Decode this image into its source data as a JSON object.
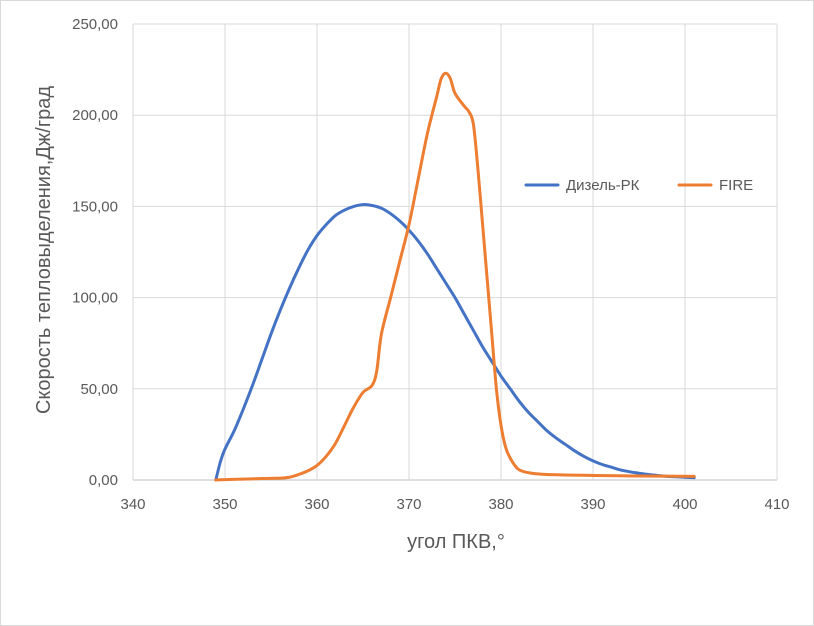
{
  "chart_data": {
    "type": "line",
    "title": "",
    "xlabel": "угол ПКВ,°",
    "ylabel": "Скорость тепловыделения,Дж/град",
    "xlim": [
      340,
      410
    ],
    "ylim": [
      0,
      250
    ],
    "x_ticks": [
      340,
      350,
      360,
      370,
      380,
      390,
      400,
      410
    ],
    "x_tick_labels": [
      "340",
      "350",
      "360",
      "370",
      "380",
      "390",
      "400",
      "410"
    ],
    "y_ticks": [
      0,
      50,
      100,
      150,
      200,
      250
    ],
    "y_tick_labels": [
      "0,00",
      "50,00",
      "100,00",
      "150,00",
      "200,00",
      "250,00"
    ],
    "grid": true,
    "legend_position": "right",
    "series": [
      {
        "name": "Дизель-РК",
        "color": "#4472C4",
        "points": [
          [
            349,
            0
          ],
          [
            349.5,
            10
          ],
          [
            350,
            17
          ],
          [
            351,
            27
          ],
          [
            352,
            39
          ],
          [
            353,
            52
          ],
          [
            354,
            66
          ],
          [
            355,
            80
          ],
          [
            356,
            93
          ],
          [
            357,
            105
          ],
          [
            358,
            116
          ],
          [
            359,
            126
          ],
          [
            360,
            134
          ],
          [
            361,
            140
          ],
          [
            362,
            145
          ],
          [
            363,
            148
          ],
          [
            364,
            150
          ],
          [
            365,
            151
          ],
          [
            366,
            150.5
          ],
          [
            367,
            149
          ],
          [
            368,
            146
          ],
          [
            369,
            142
          ],
          [
            370,
            137
          ],
          [
            371,
            131
          ],
          [
            372,
            124
          ],
          [
            373,
            116
          ],
          [
            374,
            108
          ],
          [
            375,
            100
          ],
          [
            376,
            91
          ],
          [
            377,
            82
          ],
          [
            378,
            73
          ],
          [
            379,
            65
          ],
          [
            380,
            57
          ],
          [
            381,
            50
          ],
          [
            382,
            43
          ],
          [
            383,
            37
          ],
          [
            384,
            32
          ],
          [
            385,
            27
          ],
          [
            386,
            23
          ],
          [
            387,
            19.5
          ],
          [
            388,
            16
          ],
          [
            389,
            13
          ],
          [
            390,
            10.5
          ],
          [
            391,
            8.5
          ],
          [
            392,
            7
          ],
          [
            393,
            5.5
          ],
          [
            394,
            4.5
          ],
          [
            395,
            3.7
          ],
          [
            396,
            3
          ],
          [
            397,
            2.5
          ],
          [
            398,
            2
          ],
          [
            399,
            1.8
          ],
          [
            400,
            1.5
          ],
          [
            401,
            1.3
          ]
        ]
      },
      {
        "name": "FIRE",
        "color": "#ED7D31",
        "points": [
          [
            349,
            0
          ],
          [
            350,
            0.2
          ],
          [
            352,
            0.5
          ],
          [
            354,
            0.8
          ],
          [
            356,
            1
          ],
          [
            357,
            1.5
          ],
          [
            358,
            3
          ],
          [
            359,
            5
          ],
          [
            360,
            8
          ],
          [
            361,
            13
          ],
          [
            362,
            20
          ],
          [
            363,
            30
          ],
          [
            364,
            40
          ],
          [
            365,
            48
          ],
          [
            366,
            52
          ],
          [
            366.5,
            60
          ],
          [
            367,
            80
          ],
          [
            368,
            100
          ],
          [
            369,
            120
          ],
          [
            370,
            140
          ],
          [
            371,
            165
          ],
          [
            372,
            190
          ],
          [
            373,
            210
          ],
          [
            373.5,
            220
          ],
          [
            374,
            223
          ],
          [
            374.5,
            220
          ],
          [
            375,
            212
          ],
          [
            376,
            205
          ],
          [
            376.5,
            202
          ],
          [
            377,
            195
          ],
          [
            377.5,
            170
          ],
          [
            378,
            140
          ],
          [
            378.5,
            110
          ],
          [
            379,
            80
          ],
          [
            379.5,
            50
          ],
          [
            380,
            30
          ],
          [
            380.5,
            18
          ],
          [
            381,
            12
          ],
          [
            381.5,
            8
          ],
          [
            382,
            5.5
          ],
          [
            383,
            4
          ],
          [
            385,
            3
          ],
          [
            390,
            2.5
          ],
          [
            395,
            2.2
          ],
          [
            401,
            2
          ]
        ]
      }
    ]
  }
}
